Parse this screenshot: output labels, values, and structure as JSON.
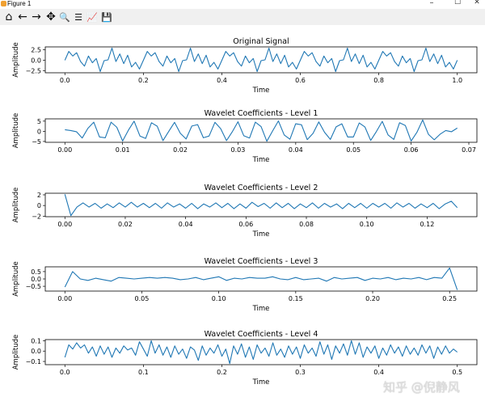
{
  "window": {
    "title": "Figure 1",
    "minimize": "–",
    "maximize": "☐",
    "close": "✕"
  },
  "toolbar": [
    {
      "name": "home-icon",
      "glyph": "⌂"
    },
    {
      "name": "back-icon",
      "glyph": "←"
    },
    {
      "name": "forward-icon",
      "glyph": "→"
    },
    {
      "name": "pan-icon",
      "glyph": "✥"
    },
    {
      "name": "zoom-icon",
      "glyph": "🔍"
    },
    {
      "name": "configure-subplots-icon",
      "glyph": "☰"
    },
    {
      "name": "edit-axes-icon",
      "glyph": "📈"
    },
    {
      "name": "save-icon",
      "glyph": "💾"
    }
  ],
  "watermark": "知乎 @倪静风",
  "line_color": "#1f77b4",
  "chart_data": [
    {
      "type": "line",
      "title": "Original Signal",
      "xlabel": "Time",
      "ylabel": "Amplitude",
      "x_start": 0,
      "x_step": 0.01,
      "xticks": [
        0,
        0.2,
        0.4,
        0.6,
        0.8,
        1.0
      ],
      "xtick_labels": [
        "0.0",
        "0.2",
        "0.4",
        "0.6",
        "0.8",
        "1.0"
      ],
      "yticks": [
        -2.5,
        0,
        2.5
      ],
      "ytick_labels": [
        "−2.5",
        "0.0",
        "2.5"
      ],
      "values": [
        0,
        2.1,
        1.0,
        1.8,
        -0.3,
        -1.4,
        1.0,
        -0.6,
        0.4,
        -2.7,
        -0.1,
        0.1,
        2.9,
        -0.3,
        1.5,
        -0.8,
        1.2,
        -1.6,
        -0.5,
        -2.1,
        0,
        2.1,
        1.0,
        1.8,
        -0.3,
        -1.4,
        1.0,
        -0.6,
        0.4,
        -2.7,
        -0.1,
        0.1,
        2.9,
        -0.3,
        1.5,
        -0.8,
        1.2,
        -1.6,
        -0.5,
        -2.1,
        0,
        2.1,
        1.0,
        1.8,
        -0.3,
        -1.4,
        1.0,
        -0.6,
        0.4,
        -2.7,
        -0.1,
        0.1,
        2.9,
        -0.3,
        1.5,
        -0.8,
        1.2,
        -1.6,
        -0.5,
        -2.1,
        0,
        2.1,
        1.0,
        1.8,
        -0.3,
        -1.4,
        1.0,
        -0.6,
        0.4,
        -2.7,
        -0.1,
        0.1,
        2.9,
        -0.3,
        1.5,
        -0.8,
        1.2,
        -1.6,
        -0.5,
        -2.1,
        0,
        2.1,
        1.0,
        1.8,
        -0.3,
        -1.4,
        1.0,
        -0.6,
        0.4,
        -2.7,
        -0.1,
        0.1,
        2.9,
        -0.3,
        1.5,
        -0.8,
        1.2,
        -1.6,
        -0.5,
        -2.1,
        0
      ]
    },
    {
      "type": "line",
      "title": "Wavelet Coefficients - Level 1",
      "xlabel": "Time",
      "ylabel": "Amplitude",
      "x_start": 0,
      "x_step": 0.001,
      "xticks": [
        0,
        0.01,
        0.02,
        0.03,
        0.04,
        0.05,
        0.06,
        0.07
      ],
      "xtick_labels": [
        "0.00",
        "0.01",
        "0.02",
        "0.03",
        "0.04",
        "0.05",
        "0.06",
        "0.07"
      ],
      "yticks": [
        -5,
        0,
        5
      ],
      "ytick_labels": [
        "−5",
        "0",
        "5"
      ],
      "values": [
        0.8,
        0.4,
        -0.2,
        -3.3,
        1.5,
        4.5,
        -2.8,
        -3.2,
        4.5,
        2,
        -4.8,
        0.5,
        5,
        -2.3,
        -3.5,
        4.2,
        2.5,
        -4.6,
        0,
        4.4,
        -1,
        -3.8,
        2.6,
        3.3,
        -3.2,
        -2.3,
        4.4,
        1.3,
        -4.6,
        -0.3,
        4.7,
        -2.2,
        -3.3,
        4.5,
        2.3,
        -4.9,
        0.2,
        5.1,
        -1.8,
        -3.9,
        3.7,
        3.2,
        -4.1,
        -1,
        4.6,
        -0.5,
        -4,
        2.2,
        3.7,
        -2.8,
        -2.8,
        4.1,
        2.1,
        -4.5,
        0,
        4.9,
        -1.8,
        -4,
        4.2,
        2.8,
        -4.8,
        -0.5,
        5.6,
        -1.5,
        -4.2,
        -1.5,
        0.4,
        -0.2,
        1.6
      ]
    },
    {
      "type": "line",
      "title": "Wavelet Coefficients - Level 2",
      "xlabel": "Time",
      "ylabel": "Amplitude",
      "x_start": 0,
      "x_step": 0.002,
      "xticks": [
        0,
        0.02,
        0.04,
        0.06,
        0.08,
        0.1,
        0.12
      ],
      "xtick_labels": [
        "0.00",
        "0.02",
        "0.04",
        "0.06",
        "0.08",
        "0.10",
        "0.12"
      ],
      "yticks": [
        -2,
        0,
        2
      ],
      "ytick_labels": [
        "−2",
        "0",
        "2"
      ],
      "values": [
        2.1,
        -1.9,
        -0.3,
        0.5,
        -0.3,
        0.4,
        -0.5,
        0.3,
        -0.4,
        0.5,
        -0.3,
        0.6,
        -0.3,
        0.4,
        -0.4,
        0.4,
        -0.5,
        0.5,
        -0.3,
        0.3,
        -0.5,
        0.4,
        -0.6,
        0.3,
        -0.3,
        0.5,
        -0.4,
        0.4,
        -0.6,
        0.3,
        -0.5,
        0.6,
        -0.2,
        0.4,
        -0.5,
        0.5,
        -0.4,
        0.4,
        -0.6,
        0.3,
        -0.4,
        0.5,
        -0.5,
        0.4,
        -0.3,
        0.3,
        -0.6,
        0.4,
        -0.4,
        0.4,
        -0.5,
        0.4,
        -0.3,
        0.4,
        -0.5,
        0.5,
        -0.3,
        0.4,
        -0.5,
        0.3,
        -0.4,
        0.4,
        -0.6,
        0.3,
        0.8,
        -0.4
      ]
    },
    {
      "type": "line",
      "title": "Wavelet Coefficients - Level 3",
      "xlabel": "Time",
      "ylabel": "Amplitude",
      "x_start": 0,
      "x_step": 0.005,
      "xticks": [
        0,
        0.05,
        0.1,
        0.15,
        0.2,
        0.25
      ],
      "xtick_labels": [
        "0.00",
        "0.05",
        "0.10",
        "0.15",
        "0.20",
        "0.25"
      ],
      "yticks": [
        -0.5,
        0,
        0.5
      ],
      "ytick_labels": [
        "−0.5",
        "0.0",
        "0.5"
      ],
      "values": [
        -0.55,
        0.5,
        0,
        -0.1,
        0.05,
        -0.05,
        -0.15,
        0.1,
        0.05,
        0,
        0.05,
        0.1,
        0.05,
        0.1,
        0.05,
        -0.05,
        0,
        0.1,
        -0.05,
        0.05,
        0.15,
        -0.1,
        0.05,
        0,
        0.1,
        0.05,
        0.05,
        0.15,
        0,
        -0.05,
        0.1,
        -0.05,
        0,
        0.05,
        -0.15,
        0.1,
        0,
        0.05,
        0.1,
        -0.1,
        0.05,
        0,
        0.1,
        -0.05,
        0.05,
        0,
        0.1,
        -0.05,
        0.1,
        0.05,
        0.75,
        -0.75
      ]
    },
    {
      "type": "line",
      "title": "Wavelet Coefficients - Level 4",
      "xlabel": "Time",
      "ylabel": "Amplitude",
      "x_start": 0,
      "x_step": 0.005,
      "xticks": [
        0,
        0.1,
        0.2,
        0.3,
        0.4,
        0.5
      ],
      "xtick_labels": [
        "0.0",
        "0.1",
        "0.2",
        "0.3",
        "0.4",
        "0.5"
      ],
      "yticks": [
        -0.1,
        0,
        0.1
      ],
      "ytick_labels": [
        "−0.1",
        "0.0",
        "0.1"
      ],
      "values": [
        -0.06,
        0.06,
        0.02,
        0.08,
        0.03,
        0.06,
        -0.02,
        0.04,
        -0.05,
        0.05,
        -0.03,
        0.04,
        -0.06,
        0.03,
        -0.02,
        0.05,
        0.01,
        0.03,
        -0.04,
        0.09,
        0.02,
        -0.05,
        0.1,
        -0.02,
        0.06,
        -0.04,
        0.04,
        -0.06,
        0.05,
        -0.03,
        0.02,
        -0.07,
        0.04,
        0.01,
        -0.09,
        0.05,
        -0.04,
        0.03,
        -0.02,
        0.06,
        -0.05,
        0.02,
        -0.12,
        0.05,
        -0.03,
        0.07,
        -0.06,
        0.04,
        -0.08,
        0.06,
        -0.02,
        0.03,
        -0.05,
        0.08,
        -0.04,
        0.02,
        -0.06,
        0.05,
        -0.03,
        0.04,
        -0.07,
        0.06,
        -0.02,
        0.03,
        -0.05,
        0.09,
        -0.03,
        0.06,
        -0.08,
        0.05,
        -0.02,
        0.07,
        -0.04,
        0.1,
        -0.03,
        0.08,
        -0.06,
        0.04,
        -0.02,
        0.05,
        -0.07,
        0.03,
        -0.04,
        0.06,
        -0.02,
        0.04,
        -0.05,
        0.05,
        -0.03,
        0.03,
        -0.04,
        0.06,
        -0.02,
        0.05,
        -0.07,
        0.04,
        -0.03,
        0.05,
        -0.02,
        0.02,
        -0.01
      ]
    }
  ]
}
